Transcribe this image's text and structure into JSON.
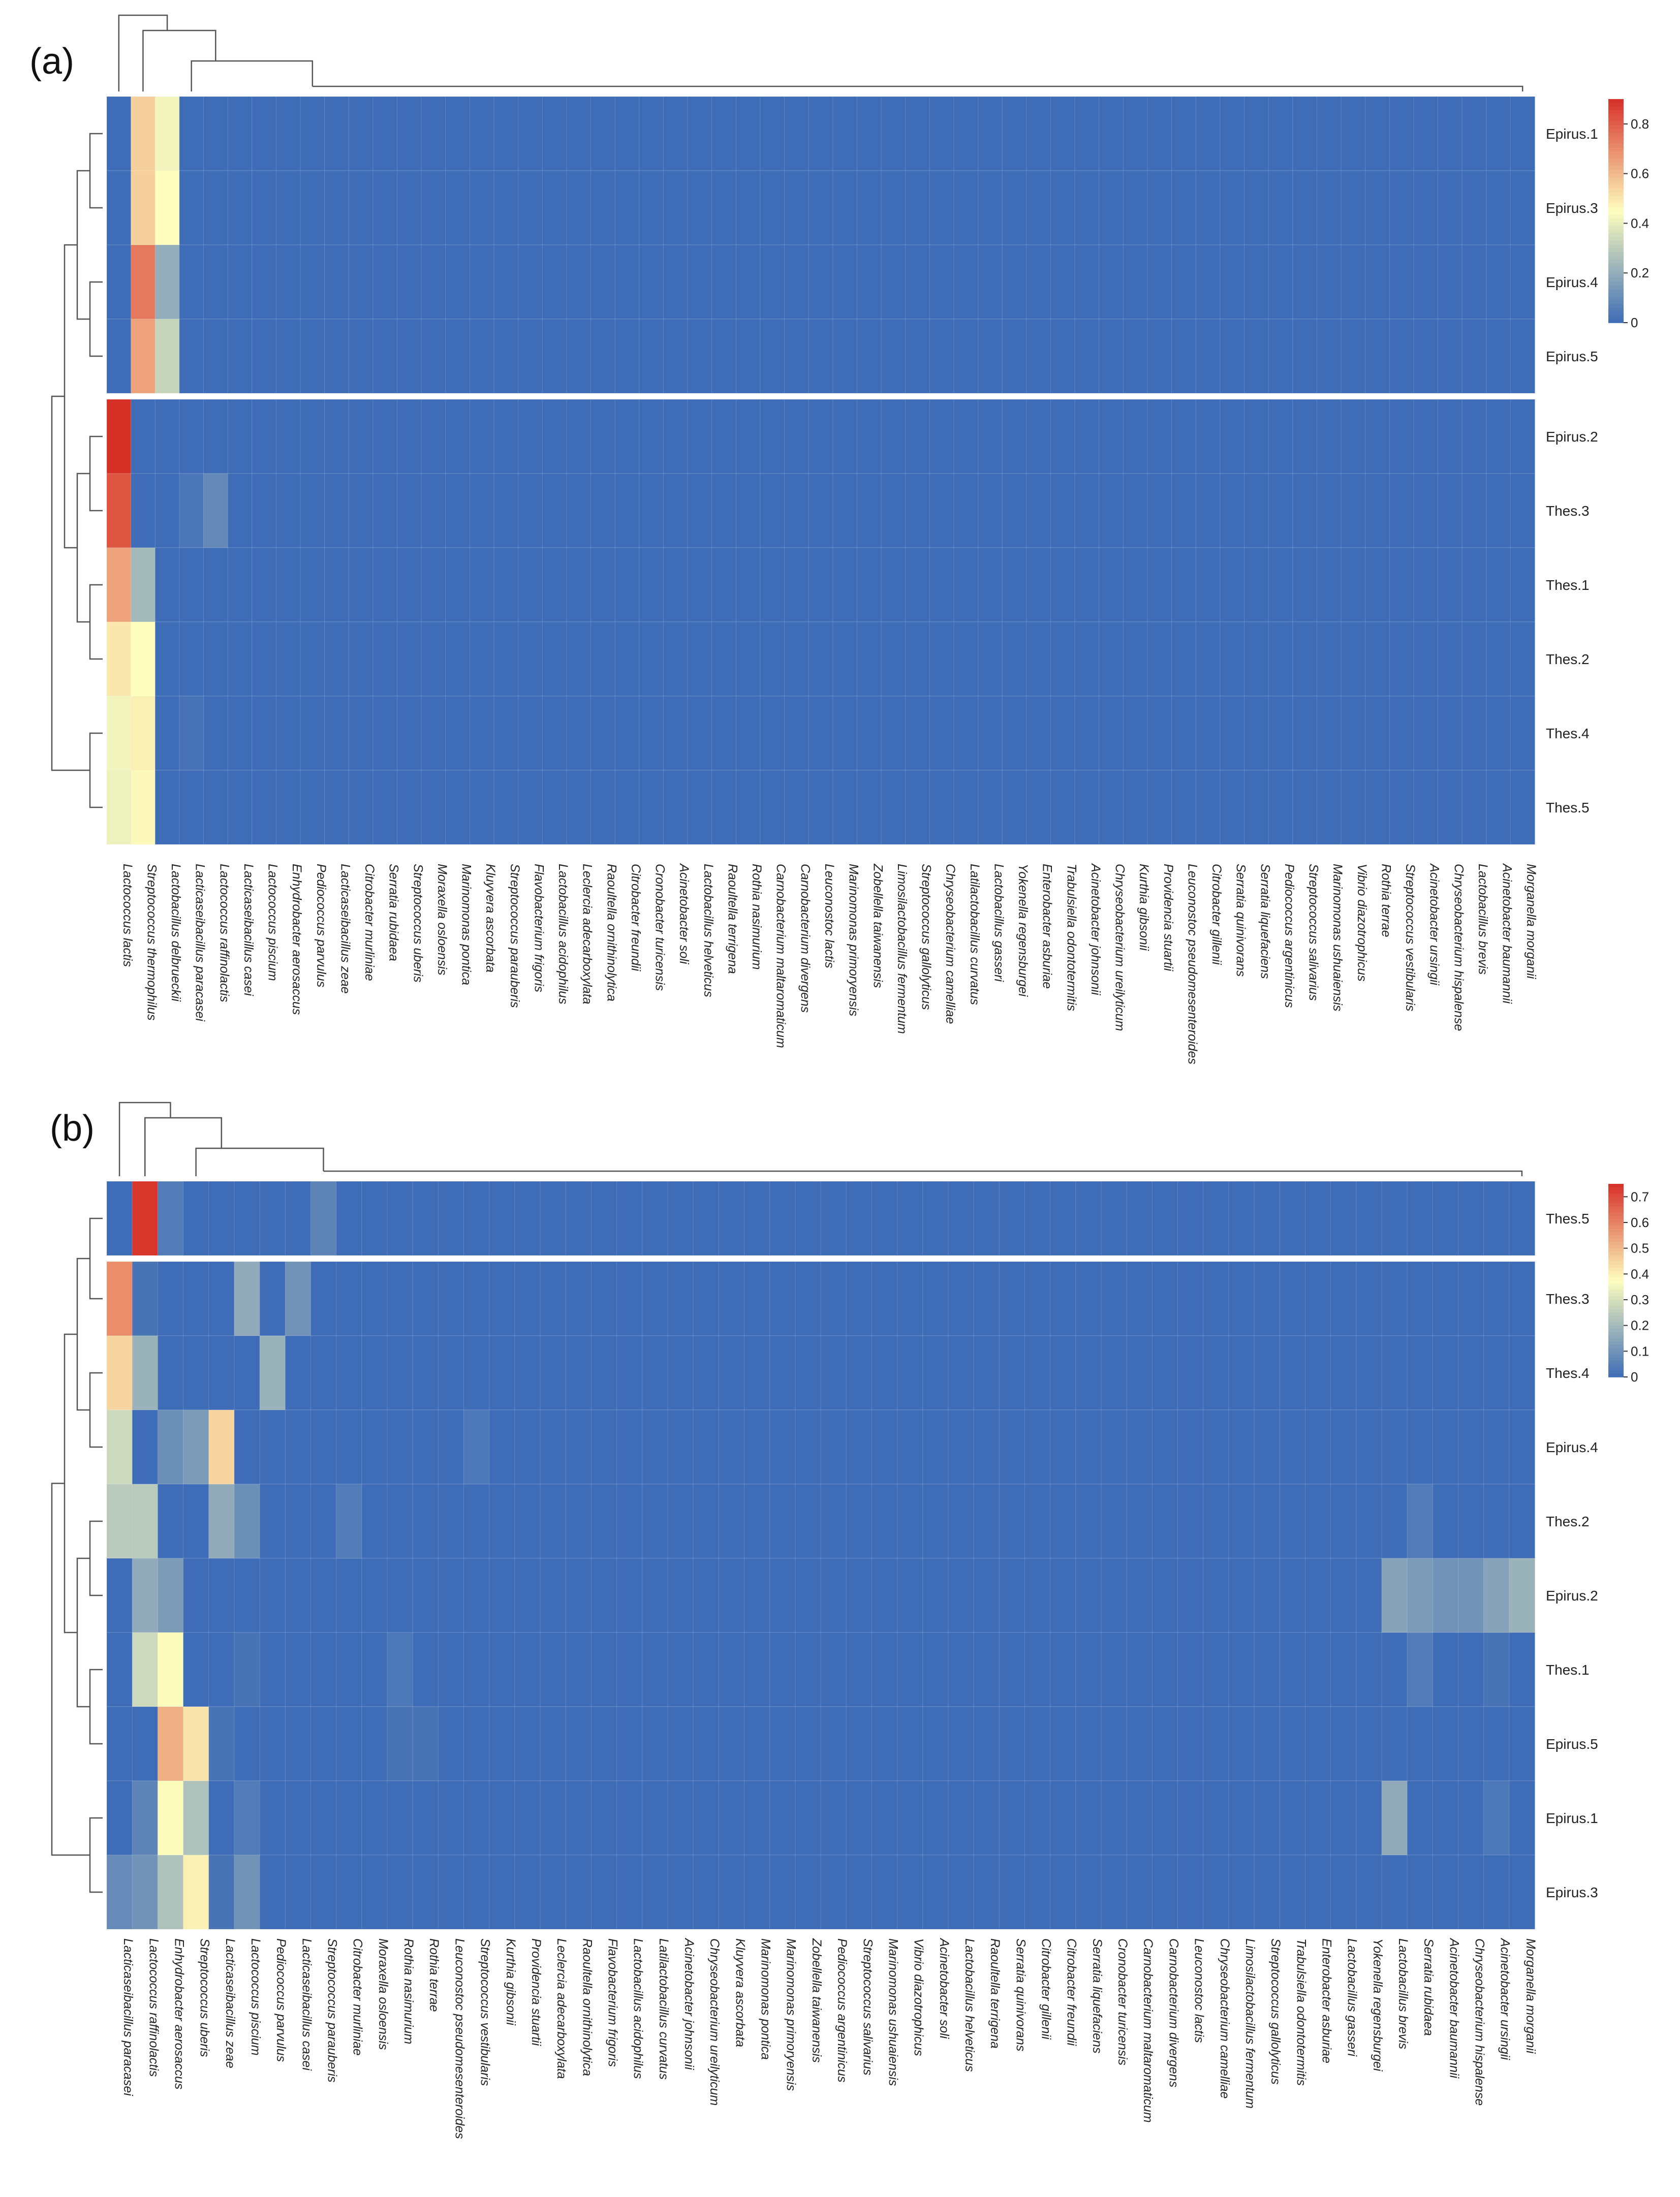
{
  "chart_data": [
    {
      "type": "heatmap",
      "panel_label": "(a)",
      "rows": [
        "Epirus.1",
        "Epirus.3",
        "Epirus.4",
        "Epirus.5",
        "Epirus.2",
        "Thes.3",
        "Thes.1",
        "Thes.2",
        "Thes.4",
        "Thes.5"
      ],
      "row_split_after": 4,
      "columns": [
        "Lactococcus lactis",
        "Streptococcus thermophilus",
        "Lactobacillus delbrueckii",
        "Lacticaseibacillus paracasei",
        "Lactococcus raffinolactis",
        "Lacticaseibacillus casei",
        "Lactococcus piscium",
        "Enhydrobacter aerosaccus",
        "Pediococcus parvulus",
        "Lacticaseibacillus zeae",
        "Citrobacter murliniae",
        "Serratia rubidaea",
        "Streptococcus uberis",
        "Moraxella osloensis",
        "Marinomonas pontica",
        "Kluyvera ascorbata",
        "Streptococcus parauberis",
        "Flavobacterium frigoris",
        "Lactobacillus acidophilus",
        "Leclercia adecarboxylata",
        "Raoultella ornithinolytica",
        "Citrobacter freundii",
        "Cronobacter turicensis",
        "Acinetobacter soli",
        "Lactobacillus helveticus",
        "Raoultella terrigena",
        "Rothia nasimurium",
        "Carnobacterium maltaromaticum",
        "Carnobacterium divergens",
        "Leuconostoc lactis",
        "Marinomonas primoryensis",
        "Zobellella taiwanensis",
        "Limosilactobacillus fermentum",
        "Streptococcus gallolyticus",
        "Chryseobacterium camelliae",
        "Latilactobacillus curvatus",
        "Lactobacillus gasseri",
        "Yokenella regensburgei",
        "Enterobacter asburiae",
        "Trabulsiella odontotermitis",
        "Acinetobacter johnsonii",
        "Chryseobacterium ureilyticum",
        "Kurthia gibsonii",
        "Providencia stuartii",
        "Leuconostoc pseudomesenteroides",
        "Citrobacter gillenii",
        "Serratia quinivorans",
        "Serratia liquefaciens",
        "Pediococcus argentinicus",
        "Streptococcus salivarius",
        "Marinomonas ushuaiensis",
        "Vibrio diazotrophicus",
        "Rothia terrae",
        "Streptococcus vestibularis",
        "Acinetobacter ursingii",
        "Chryseobacterium hispalense",
        "Lactobacillus brevis",
        "Acinetobacter baumannii",
        "Morganella morganii"
      ],
      "colorbar": {
        "min": 0,
        "max": 0.9,
        "ticks": [
          0,
          0.2,
          0.4,
          0.6,
          0.8
        ],
        "tick_labels": [
          "0",
          "0.2",
          "0.4",
          "0.6",
          "0.8"
        ]
      },
      "values": [
        [
          0.0,
          0.55,
          0.42
        ],
        [
          0.0,
          0.55,
          0.45
        ],
        [
          0.0,
          0.74,
          0.2
        ],
        [
          0.0,
          0.65,
          0.32
        ],
        [
          0.92,
          0.0,
          0.0
        ],
        [
          0.82,
          0.0,
          0.0,
          0.03,
          0.09
        ],
        [
          0.65,
          0.24
        ],
        [
          0.5,
          0.45
        ],
        [
          0.42,
          0.48,
          0.0,
          0.02
        ],
        [
          0.41,
          0.46
        ]
      ],
      "colors": {
        "low": "#3e6cb6",
        "mid": "#fefebe",
        "high": "#d73027"
      }
    },
    {
      "type": "heatmap",
      "panel_label": "(b)",
      "rows": [
        "Thes.5",
        "Thes.3",
        "Thes.4",
        "Epirus.4",
        "Thes.2",
        "Epirus.2",
        "Thes.1",
        "Epirus.5",
        "Epirus.1",
        "Epirus.3"
      ],
      "row_split_after": 1,
      "columns": [
        "Lacticaseibacillus paracasei",
        "Lactococcus raffinolactis",
        "Enhydrobacter aerosaccus",
        "Streptococcus uberis",
        "Lacticaseibacillus zeae",
        "Lactococcus piscium",
        "Pediococcus parvulus",
        "Lacticaseibacillus casei",
        "Streptococcus parauberis",
        "Citrobacter murliniae",
        "Moraxella osloensis",
        "Rothia nasimurium",
        "Rothia terrae",
        "Leuconostoc pseudomesenteroides",
        "Streptococcus vestibularis",
        "Kurthia gibsonii",
        "Providencia stuartii",
        "Leclercia adecarboxylata",
        "Raoultella ornithinolytica",
        "Flavobacterium frigoris",
        "Lactobacillus acidophilus",
        "Latilactobacillus curvatus",
        "Acinetobacter johnsonii",
        "Chryseobacterium ureilyticum",
        "Kluyvera ascorbata",
        "Marinomonas pontica",
        "Marinomonas primoryensis",
        "Zobellella taiwanensis",
        "Pediococcus argentinicus",
        "Streptococcus salivarius",
        "Marinomonas ushuaiensis",
        "Vibrio diazotrophicus",
        "Acinetobacter soli",
        "Lactobacillus helveticus",
        "Raoultella terrigena",
        "Serratia quinivorans",
        "Citrobacter gillenii",
        "Citrobacter freundii",
        "Serratia liquefaciens",
        "Cronobacter turicensis",
        "Carnobacterium maltaromaticum",
        "Carnobacterium divergens",
        "Leuconostoc lactis",
        "Chryseobacterium camelliae",
        "Limosilactobacillus fermentum",
        "Streptococcus gallolyticus",
        "Trabulsiella odontotermitis",
        "Enterobacter asburiae",
        "Lactobacillus gasseri",
        "Yokenella regensburgei",
        "Lactobacillus brevis",
        "Serratia rubidaea",
        "Acinetobacter baumannii",
        "Chryseobacterium hispalense",
        "Acinetobacter ursingii",
        "Morganella morganii"
      ],
      "colorbar": {
        "min": 0,
        "max": 0.75,
        "ticks": [
          0,
          0.1,
          0.2,
          0.3,
          0.4,
          0.5,
          0.6,
          0.7
        ],
        "tick_labels": [
          "0",
          "0.1",
          "0.2",
          "0.3",
          "0.4",
          "0.5",
          "0.6",
          "0.7"
        ]
      },
      "values": [
        [
          0.0,
          0.74,
          0.04,
          0.0,
          0.0,
          0.0,
          0.0,
          0.0,
          0.06
        ],
        [
          0.58,
          0.02,
          0.0,
          0.0,
          0.0,
          0.16,
          0.0,
          0.1
        ],
        [
          0.45,
          0.18,
          0.0,
          0.0,
          0.0,
          0.0,
          0.18
        ],
        [
          0.28,
          0.0,
          0.09,
          0.12,
          0.45,
          0.0,
          0.0,
          0.0,
          0.0,
          0.0,
          0.0,
          0.0,
          0.0,
          0.0,
          0.03
        ],
        [
          0.24,
          0.24,
          0.0,
          0.0,
          0.16,
          0.09,
          0.0,
          0.0,
          0.0,
          0.04,
          0.0,
          0.0,
          0.0,
          0.0,
          0.0,
          0.0,
          0.0,
          0.0,
          0.0,
          0.0,
          0.0,
          0.0,
          0.0,
          0.0,
          0.0,
          0.0,
          0.0,
          0.0,
          0.0,
          0.0,
          0.0,
          0.0,
          0.0,
          0.0,
          0.0,
          0.0,
          0.0,
          0.0,
          0.0,
          0.0,
          0.0,
          0.0,
          0.0,
          0.0,
          0.0,
          0.0,
          0.0,
          0.0,
          0.0,
          0.0,
          0.0,
          0.04
        ],
        [
          0.0,
          0.16,
          0.12,
          0.0,
          0.0,
          0.0,
          0.0,
          0.0,
          0.0,
          0.0,
          0.0,
          0.0,
          0.0,
          0.0,
          0.0,
          0.0,
          0.0,
          0.0,
          0.0,
          0.0,
          0.0,
          0.0,
          0.0,
          0.0,
          0.0,
          0.0,
          0.0,
          0.0,
          0.0,
          0.0,
          0.0,
          0.0,
          0.0,
          0.0,
          0.0,
          0.0,
          0.0,
          0.0,
          0.0,
          0.0,
          0.0,
          0.0,
          0.0,
          0.0,
          0.0,
          0.0,
          0.0,
          0.0,
          0.0,
          0.0,
          0.14,
          0.12,
          0.1,
          0.1,
          0.14,
          0.18
        ],
        [
          0.0,
          0.28,
          0.38,
          0.0,
          0.0,
          0.02,
          0.0,
          0.0,
          0.0,
          0.0,
          0.0,
          0.03,
          0.0,
          0.0,
          0.0,
          0.0,
          0.0,
          0.0,
          0.0,
          0.0,
          0.0,
          0.0,
          0.0,
          0.0,
          0.0,
          0.0,
          0.0,
          0.0,
          0.0,
          0.0,
          0.0,
          0.0,
          0.0,
          0.0,
          0.0,
          0.0,
          0.0,
          0.0,
          0.0,
          0.0,
          0.0,
          0.0,
          0.0,
          0.0,
          0.0,
          0.0,
          0.0,
          0.0,
          0.0,
          0.0,
          0.0,
          0.04,
          0.0,
          0.0,
          0.02
        ],
        [
          0.0,
          0.0,
          0.52,
          0.42,
          0.02,
          0.0,
          0.0,
          0.0,
          0.0,
          0.0,
          0.0,
          0.02,
          0.02
        ],
        [
          0.0,
          0.06,
          0.38,
          0.22,
          0.0,
          0.04,
          0.0,
          0.0,
          0.0,
          0.0,
          0.0,
          0.0,
          0.0,
          0.0,
          0.0,
          0.0,
          0.0,
          0.0,
          0.0,
          0.0,
          0.0,
          0.0,
          0.0,
          0.0,
          0.0,
          0.0,
          0.0,
          0.0,
          0.0,
          0.0,
          0.0,
          0.0,
          0.0,
          0.0,
          0.0,
          0.0,
          0.0,
          0.0,
          0.0,
          0.0,
          0.0,
          0.0,
          0.0,
          0.0,
          0.0,
          0.0,
          0.0,
          0.0,
          0.0,
          0.0,
          0.16,
          0.0,
          0.0,
          0.0,
          0.03
        ],
        [
          0.08,
          0.1,
          0.22,
          0.4,
          0.02,
          0.1
        ]
      ],
      "colors": {
        "low": "#3e6cb6",
        "mid": "#fefebe",
        "high": "#d73027"
      }
    }
  ]
}
